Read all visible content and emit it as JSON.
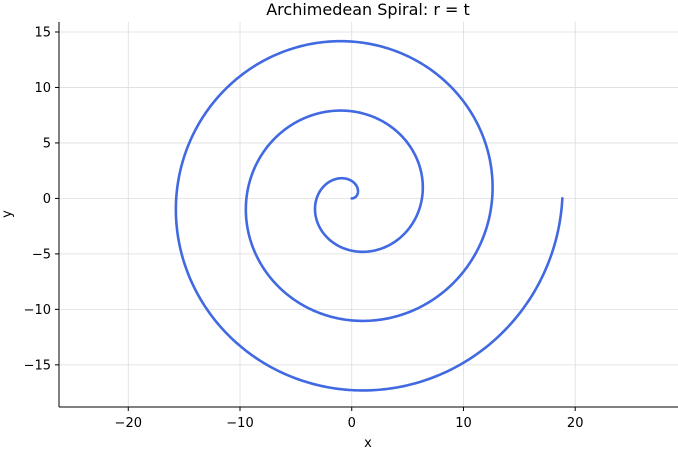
{
  "chart_data": {
    "type": "line",
    "title": "Archimedean Spiral: r = t",
    "xlabel": "x",
    "ylabel": "y",
    "xlim": [
      -26.2,
      29.2
    ],
    "ylim": [
      -18.8,
      15.9
    ],
    "xticks": [
      -20,
      -10,
      0,
      10,
      20
    ],
    "yticks": [
      -15,
      -10,
      -5,
      0,
      5,
      10,
      15
    ],
    "xtick_labels": [
      "−20",
      "−10",
      "0",
      "10",
      "20"
    ],
    "ytick_labels": [
      "−15",
      "−10",
      "−5",
      "0",
      "5",
      "10",
      "15"
    ],
    "grid": true,
    "series": [
      {
        "equation": "r = t",
        "t_range": [
          0,
          18.85
        ],
        "color": "#4169e1"
      }
    ]
  }
}
